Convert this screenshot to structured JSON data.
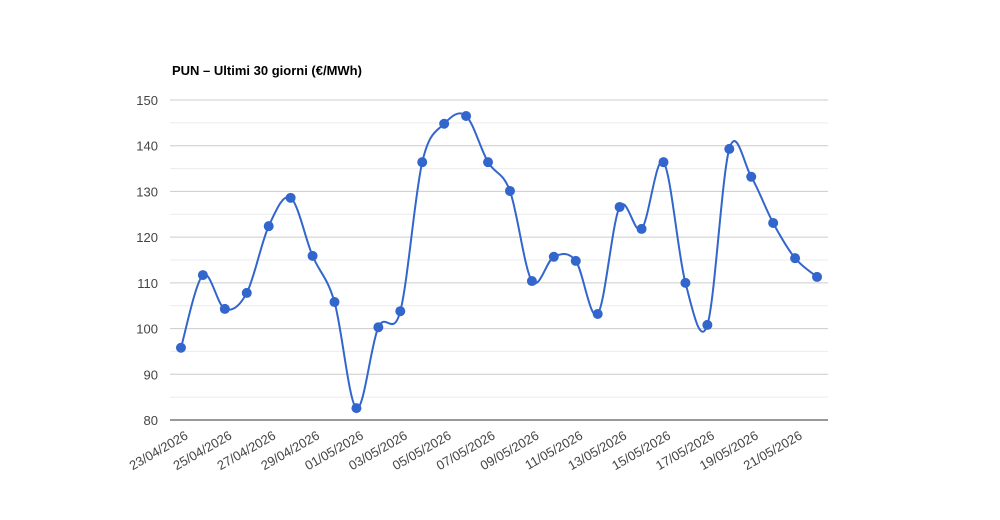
{
  "chart_data": {
    "type": "line",
    "title": "PUN – Ultimi 30 giorni (€/MWh)",
    "categories": [
      "23/04/2026",
      null,
      "25/04/2026",
      null,
      "27/04/2026",
      null,
      "29/04/2026",
      null,
      "01/05/2026",
      null,
      "03/05/2026",
      null,
      "05/05/2026",
      null,
      "07/05/2026",
      null,
      "09/05/2026",
      null,
      "11/05/2026",
      null,
      "13/05/2026",
      null,
      "15/05/2026",
      null,
      "17/05/2026",
      null,
      "19/05/2026",
      null,
      "21/05/2026",
      null
    ],
    "series": [
      {
        "name": "PUN",
        "color": "#3366cc",
        "values": [
          95.8,
          111.7,
          104.3,
          107.8,
          122.4,
          128.6,
          115.9,
          105.8,
          82.6,
          100.3,
          103.8,
          136.4,
          144.8,
          146.5,
          136.4,
          130.1,
          110.4,
          115.7,
          114.8,
          103.2,
          126.6,
          121.8,
          136.4,
          110.0,
          100.8,
          139.3,
          133.2,
          123.1,
          115.4,
          111.3
        ]
      }
    ],
    "ylim": [
      80,
      150
    ],
    "yticks": [
      80,
      90,
      100,
      110,
      120,
      130,
      140,
      150
    ],
    "grid": true,
    "minor_grid": true,
    "smooth": true
  }
}
